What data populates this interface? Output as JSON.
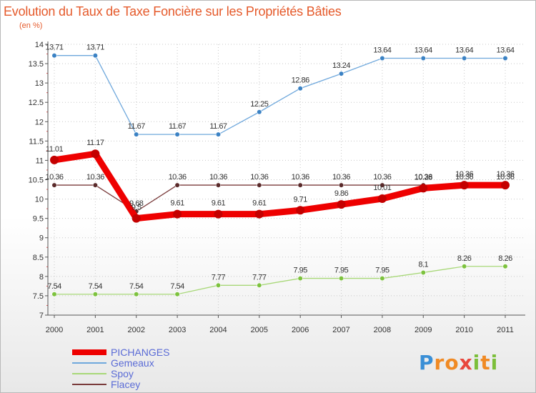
{
  "title": "Evolution du Taux de Taxe Foncière sur les Propriétés Bâties",
  "subtitle": "(en %)",
  "logo": {
    "letters": [
      "P",
      "r",
      "o",
      "x",
      "i",
      "t",
      "i"
    ],
    "colors": [
      "#3a8fd6",
      "#f08a24",
      "#f08a24",
      "#e8463c",
      "#7cbf3a",
      "#f08a24",
      "#7cbf3a"
    ]
  },
  "chart_data": {
    "type": "line",
    "title": "Evolution du Taux de Taxe Foncière sur les Propriétés Bâties",
    "ylabel": "(en %)",
    "xlabel": "",
    "ylim": [
      7,
      14
    ],
    "yticks": [
      "7",
      "7.5",
      "8",
      "8.5",
      "9",
      "9.5",
      "10",
      "10.5",
      "11",
      "11.5",
      "12",
      "12.5",
      "13",
      "13.5",
      "14"
    ],
    "x": [
      "2000",
      "2001",
      "2002",
      "2003",
      "2004",
      "2005",
      "2006",
      "2007",
      "2008",
      "2009",
      "2010",
      "2011"
    ],
    "legend_position": "bottom-left",
    "series": [
      {
        "name": "PICHANGES",
        "color": "#ee0000",
        "emphasis": true,
        "values": [
          11.01,
          11.17,
          9.5,
          9.61,
          9.61,
          9.61,
          9.71,
          9.86,
          10.01,
          10.28,
          10.36,
          10.36
        ],
        "labels": [
          "11.01",
          "11.17",
          "9.5",
          "9.61",
          "9.61",
          "9.61",
          "9.71",
          "9.86",
          "10.01",
          "10.28",
          "10.36",
          "10.36"
        ]
      },
      {
        "name": "Gemeaux",
        "color": "#6fa8dc",
        "point": "#3b82c4",
        "values": [
          13.71,
          13.71,
          11.67,
          11.67,
          11.67,
          12.25,
          12.86,
          13.24,
          13.64,
          13.64,
          13.64,
          13.64
        ],
        "labels": [
          "13.71",
          "13.71",
          "11.67",
          "11.67",
          "11.67",
          "12.25",
          "12.86",
          "13.24",
          "13.64",
          "13.64",
          "13.64",
          "13.64"
        ]
      },
      {
        "name": "Spoy",
        "color": "#a8d878",
        "point": "#7dc23e",
        "values": [
          7.54,
          7.54,
          7.54,
          7.54,
          7.77,
          7.77,
          7.95,
          7.95,
          7.95,
          8.1,
          8.26,
          8.26
        ],
        "labels": [
          "7.54",
          "7.54",
          "7.54",
          "7.54",
          "7.77",
          "7.77",
          "7.95",
          "7.95",
          "7.95",
          "8.1",
          "8.26",
          "8.26"
        ]
      },
      {
        "name": "Flacey",
        "color": "#7a3b3b",
        "point": "#5a2a2a",
        "values": [
          10.36,
          10.36,
          9.68,
          10.36,
          10.36,
          10.36,
          10.36,
          10.36,
          10.36,
          10.36,
          10.36,
          10.36
        ],
        "labels": [
          "10.36",
          "10.36",
          "9.68",
          "10.36",
          "10.36",
          "10.36",
          "10.36",
          "10.36",
          "10.36",
          "10.36",
          "10.36",
          "10.36"
        ]
      }
    ]
  }
}
